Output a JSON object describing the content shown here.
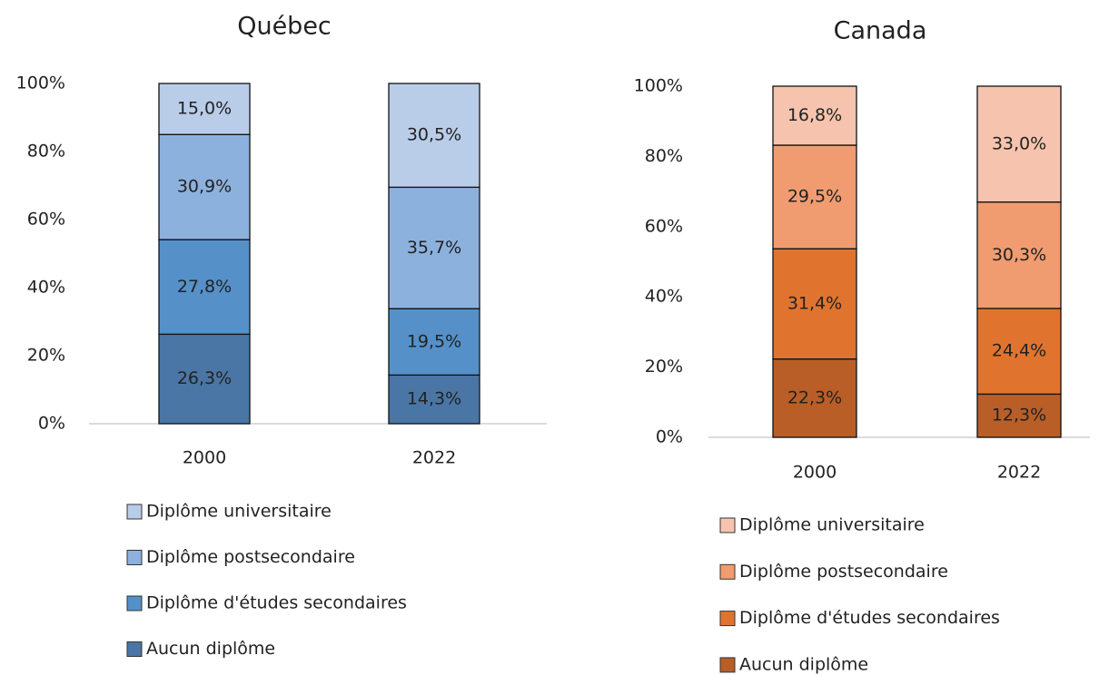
{
  "chart_data": [
    {
      "type": "stacked_bar",
      "title": "Québec",
      "categories": [
        "2000",
        "2022"
      ],
      "ylim": [
        0,
        100
      ],
      "yticks": [
        {
          "value": 0,
          "label": "0%"
        },
        {
          "value": 20,
          "label": "20%"
        },
        {
          "value": 40,
          "label": "40%"
        },
        {
          "value": 60,
          "label": "60%"
        },
        {
          "value": 80,
          "label": "80%"
        },
        {
          "value": 100,
          "label": "100%"
        }
      ],
      "series": [
        {
          "name": "Aucun diplôme",
          "color": "#4a76a5",
          "values": [
            26.3,
            14.3
          ],
          "value_labels": [
            "26,3%",
            "14,3%"
          ]
        },
        {
          "name": "Diplôme d'études secondaires",
          "color": "#5591c8",
          "values": [
            27.8,
            19.5
          ],
          "value_labels": [
            "27,8%",
            "19,5%"
          ]
        },
        {
          "name": "Diplôme postsecondaire",
          "color": "#8db1dd",
          "values": [
            30.9,
            35.7
          ],
          "value_labels": [
            "30,9%",
            "35,7%"
          ]
        },
        {
          "name": "Diplôme universitaire",
          "color": "#b9cde9",
          "values": [
            15.0,
            30.5
          ],
          "value_labels": [
            "15,0%",
            "30,5%"
          ]
        }
      ]
    },
    {
      "type": "stacked_bar",
      "title": "Canada",
      "categories": [
        "2000",
        "2022"
      ],
      "ylim": [
        0,
        100
      ],
      "yticks": [
        {
          "value": 0,
          "label": "0%"
        },
        {
          "value": 20,
          "label": "20%"
        },
        {
          "value": 40,
          "label": "40%"
        },
        {
          "value": 60,
          "label": "60%"
        },
        {
          "value": 80,
          "label": "80%"
        },
        {
          "value": 100,
          "label": "100%"
        }
      ],
      "series": [
        {
          "name": "Aucun diplôme",
          "color": "#b95e27",
          "values": [
            22.3,
            12.3
          ],
          "value_labels": [
            "22,3%",
            "12,3%"
          ]
        },
        {
          "name": "Diplôme d'études secondaires",
          "color": "#e0742f",
          "values": [
            31.4,
            24.4
          ],
          "value_labels": [
            "31,4%",
            "24,4%"
          ]
        },
        {
          "name": "Diplôme postsecondaire",
          "color": "#f09c70",
          "values": [
            29.5,
            30.3
          ],
          "value_labels": [
            "29,5%",
            "30,3%"
          ]
        },
        {
          "name": "Diplôme universitaire",
          "color": "#f6c4ae",
          "values": [
            16.8,
            33.0
          ],
          "value_labels": [
            "16,8%",
            "33,0%"
          ]
        }
      ]
    }
  ]
}
